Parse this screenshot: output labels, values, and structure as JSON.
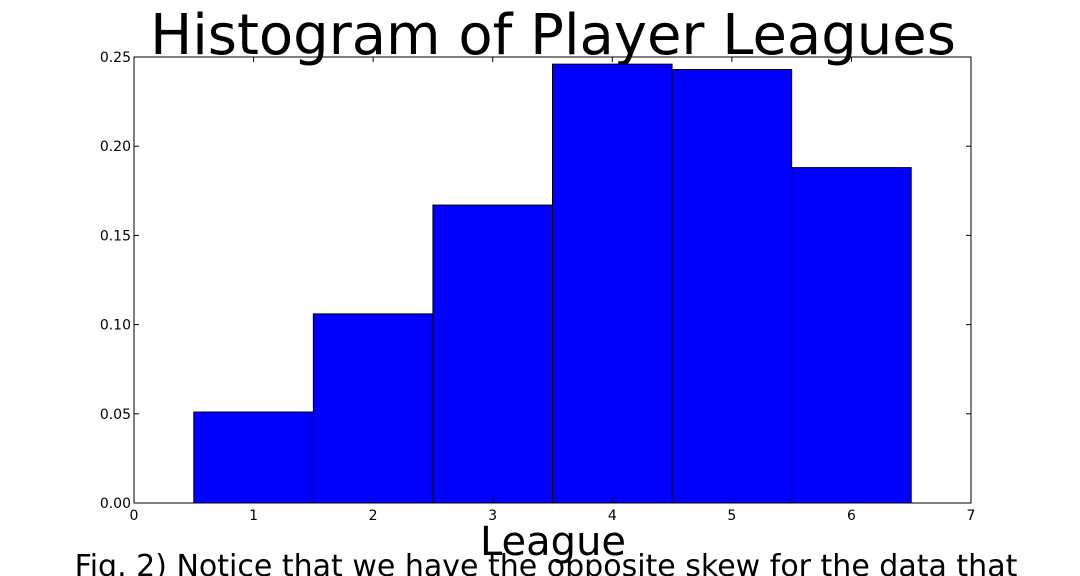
{
  "chart_data": {
    "type": "bar",
    "title": "Histogram of Player Leagues",
    "xlabel": "League",
    "ylabel": "",
    "caption": "Fig. 2) Notice that we have the opposite skew for the data that",
    "xlim": [
      0,
      7
    ],
    "ylim": [
      0,
      0.25
    ],
    "xticks": [
      "0",
      "1",
      "2",
      "3",
      "4",
      "5",
      "6",
      "7"
    ],
    "yticks": [
      "0.00",
      "0.05",
      "0.10",
      "0.15",
      "0.20",
      "0.25"
    ],
    "bars": [
      {
        "x": 1,
        "value": 0.051
      },
      {
        "x": 2,
        "value": 0.106
      },
      {
        "x": 3,
        "value": 0.167
      },
      {
        "x": 4,
        "value": 0.246
      },
      {
        "x": 5,
        "value": 0.243
      },
      {
        "x": 6,
        "value": 0.188
      }
    ],
    "bar_color": "#0000ff",
    "grid": false
  }
}
